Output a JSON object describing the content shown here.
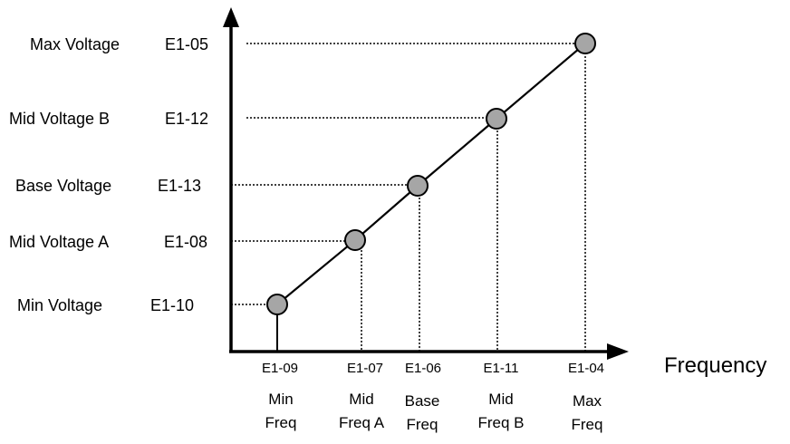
{
  "colors": {
    "line": "#000000",
    "point_fill": "#a6a6a6",
    "background": "#ffffff"
  },
  "x_axis_title": "Frequency",
  "voltage_levels": [
    {
      "name": "Max Voltage",
      "code": "E1-05"
    },
    {
      "name": "Mid Voltage B",
      "code": "E1-12"
    },
    {
      "name": "Base Voltage",
      "code": "E1-13"
    },
    {
      "name": "Mid Voltage A",
      "code": "E1-08"
    },
    {
      "name": "Min Voltage",
      "code": "E1-10"
    }
  ],
  "frequency_points": [
    {
      "code": "E1-09",
      "name_line1": "Min",
      "name_line2": "Freq"
    },
    {
      "code": "E1-07",
      "name_line1": "Mid",
      "name_line2": "Freq A"
    },
    {
      "code": "E1-06",
      "name_line1": "Base",
      "name_line2": "Freq"
    },
    {
      "code": "E1-11",
      "name_line1": "Mid",
      "name_line2": "Freq B"
    },
    {
      "code": "E1-04",
      "name_line1": "Max",
      "name_line2": "Freq"
    }
  ]
}
